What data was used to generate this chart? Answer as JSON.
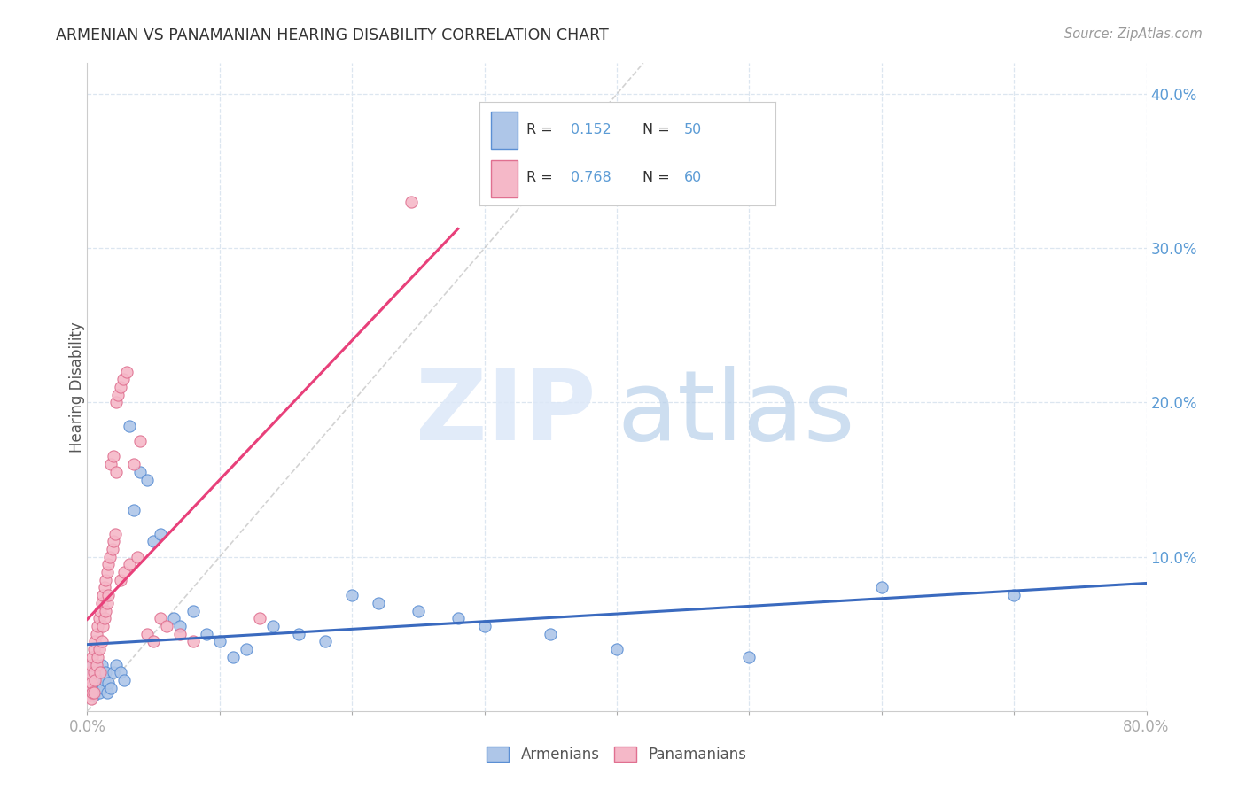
{
  "title": "ARMENIAN VS PANAMANIAN HEARING DISABILITY CORRELATION CHART",
  "source": "Source: ZipAtlas.com",
  "ylabel": "Hearing Disability",
  "xlim": [
    0.0,
    0.8
  ],
  "ylim": [
    0.0,
    0.42
  ],
  "legend_armenians": "Armenians",
  "legend_panamanians": "Panamanians",
  "R_armenians": "0.152",
  "N_armenians": "50",
  "R_panamanians": "0.768",
  "N_panamanians": "60",
  "color_armenians_fill": "#aec6e8",
  "color_armenians_edge": "#5b8fd4",
  "color_panamanians_fill": "#f5b8c8",
  "color_panamanians_edge": "#e07090",
  "color_line_armenians": "#3a6abf",
  "color_line_panamanians": "#e8407a",
  "color_diag": "#c0c0c0",
  "color_title": "#333333",
  "color_axis_text": "#5b9bd5",
  "color_legend_text_dark": "#333333",
  "color_legend_text_blue": "#5b9bd5",
  "background_color": "#ffffff",
  "grid_color": "#dce6f0",
  "watermark_zip_color": "#dce8f8",
  "watermark_atlas_color": "#b8d0ea"
}
